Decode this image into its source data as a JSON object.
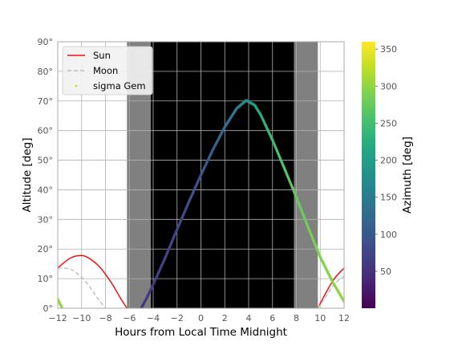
{
  "chart_data": {
    "type": "line",
    "xlabel": "Hours from Local Time Midnight",
    "ylabel": "Altitude [deg]",
    "xlim": [
      -12,
      12
    ],
    "ylim": [
      0,
      90
    ],
    "x_ticks": [
      -12,
      -10,
      -8,
      -6,
      -4,
      -2,
      0,
      2,
      4,
      6,
      8,
      10,
      12
    ],
    "x_tick_labels": [
      "−12",
      "−10",
      "−8",
      "−6",
      "−4",
      "−2",
      "0",
      "2",
      "4",
      "6",
      "8",
      "10",
      "12"
    ],
    "y_ticks": [
      0,
      10,
      20,
      30,
      40,
      50,
      60,
      70,
      80,
      90
    ],
    "y_tick_labels": [
      "0°",
      "10°",
      "20°",
      "30°",
      "40°",
      "50°",
      "60°",
      "70°",
      "80°",
      "90°"
    ],
    "grid": true,
    "legend_position": "top-left",
    "twilight_bands": [
      {
        "x0": -6.2,
        "x1": -4.2,
        "shade": "twilight",
        "color": "#808080"
      },
      {
        "x0": -4.2,
        "x1": 7.8,
        "shade": "night",
        "color": "#000000"
      },
      {
        "x0": 7.8,
        "x1": 9.8,
        "shade": "twilight",
        "color": "#808080"
      }
    ],
    "series": [
      {
        "name": "Sun",
        "style": "solid",
        "color": "#ee1111",
        "segments": [
          {
            "x": [
              -12,
              -11,
              -10.2,
              -9.5,
              -8.5,
              -7.5,
              -6.8,
              -6.2
            ],
            "y": [
              13.6,
              16.8,
              17.8,
              17.2,
              14.0,
              8.6,
              3.8,
              0
            ]
          },
          {
            "x": [
              9.8,
              10.5,
              11.2,
              12
            ],
            "y": [
              0,
              5.4,
              10.1,
              13.6
            ]
          }
        ]
      },
      {
        "name": "Moon",
        "style": "dashed",
        "color": "#c0c0c0",
        "segments": [
          {
            "x": [
              -12,
              -11,
              -10.3,
              -9.5,
              -8.7,
              -8.0
            ],
            "y": [
              13.6,
              13.3,
              11.5,
              8.2,
              3.6,
              0
            ]
          },
          {
            "x": [
              9.8,
              10.5,
              11.2,
              12
            ],
            "y": [
              0,
              4.1,
              8.2,
              10.9
            ]
          }
        ]
      },
      {
        "name": "sigma Gem",
        "style": "points",
        "colored_by": "azimuth",
        "x": [
          -12,
          -11.8,
          -11.6,
          -5.0,
          -4.5,
          -4.0,
          -3.0,
          -2.0,
          -1.0,
          0.0,
          1.0,
          2.0,
          3.0,
          3.8,
          4.5,
          5.0,
          6.0,
          7.0,
          8.0,
          9.0,
          10.0,
          11.0,
          12.0
        ],
        "y": [
          3.0,
          1.4,
          0.0,
          0.0,
          3.8,
          8.0,
          17.0,
          26.6,
          36.0,
          45.0,
          53.5,
          61.2,
          67.5,
          70.2,
          68.6,
          65.4,
          56.8,
          47.2,
          37.5,
          27.2,
          17.3,
          9.2,
          2.3
        ],
        "azimuth": [
          300,
          302,
          305,
          55,
          60,
          65,
          73,
          80,
          88,
          96,
          108,
          125,
          150,
          180,
          205,
          222,
          247,
          263,
          275,
          283,
          290,
          295,
          300
        ]
      }
    ],
    "colorbar": {
      "label": "Azimuth [deg]",
      "colormap": "viridis",
      "range": [
        0,
        360
      ],
      "ticks": [
        50,
        100,
        150,
        200,
        250,
        300,
        350
      ],
      "tick_labels": [
        "50",
        "100",
        "150",
        "200",
        "250",
        "300",
        "350"
      ]
    }
  }
}
